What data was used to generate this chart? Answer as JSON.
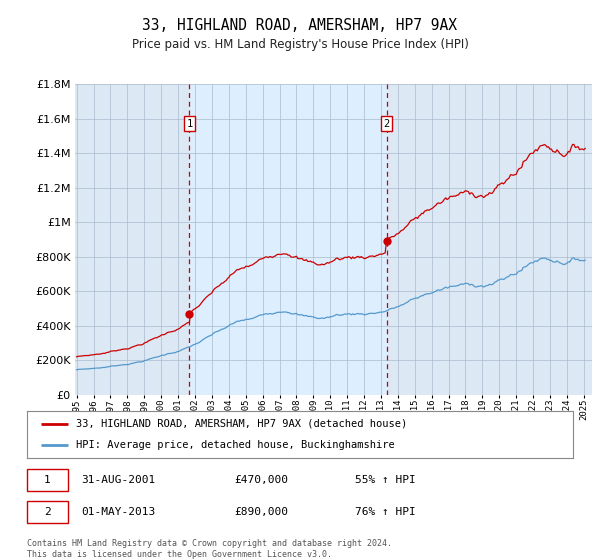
{
  "title": "33, HIGHLAND ROAD, AMERSHAM, HP7 9AX",
  "subtitle": "Price paid vs. HM Land Registry's House Price Index (HPI)",
  "legend_label_red": "33, HIGHLAND ROAD, AMERSHAM, HP7 9AX (detached house)",
  "legend_label_blue": "HPI: Average price, detached house, Buckinghamshire",
  "marker1_date": "31-AUG-2001",
  "marker1_price": "£470,000",
  "marker1_pct": "55% ↑ HPI",
  "marker1_year": 2001.667,
  "marker1_value": 470000,
  "marker2_date": "01-MAY-2013",
  "marker2_price": "£890,000",
  "marker2_pct": "76% ↑ HPI",
  "marker2_year": 2013.333,
  "marker2_value": 890000,
  "footnote": "Contains HM Land Registry data © Crown copyright and database right 2024.\nThis data is licensed under the Open Government Licence v3.0.",
  "red_color": "#cc0000",
  "blue_color": "#5599cc",
  "highlight_color": "#ddeeff",
  "bg_color": "#dce9f5",
  "ylim": [
    0,
    1800000
  ],
  "xlim_start": 1994.9,
  "xlim_end": 2025.5
}
